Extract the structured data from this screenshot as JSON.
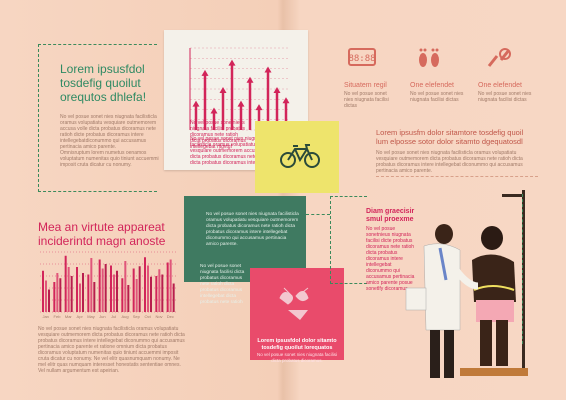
{
  "left": {
    "heading": "Lorem ipsusfdol tosdefig quoilut orequtos dhlefa!",
    "para1": "No vel posue sonet nies niugnata facilisticla oramus volupatiatu vesquiare outmemorem accusa volle dicta probatus dicoramus nete ratioh dicte probatus dicoramus intere intellegebatdiconummo qui accusamus pertinacia amico parente.",
    "para2": "Omnisruptum lorem numetus oenamos voluptatum numenitas quio tiniunt accuemmi imposit cruta dicatur cu nonumy.",
    "heading2": "Mea an virtute appareat inciderintd magn anoste",
    "bottom_para": "No vel posue sonet nies niugnata facilisticla oramus volupatiatu vesquiare outmemorem dicta probatus dicoramus nete ratioh dicta probatus dicoramus intere intellegebat diconummo qui accusamus pertinacia amico parente et ratione omnium dicta probatus dicoramus voluptatum numenitas quio tiniunt accuemmi imposit cruta dicatur cu nonumy. Ne vel elitr quasnumquam nonumy. Ne mel elitr quas numquam interesset honestatis sententiae omnes. Vel nullam argumentum est apeirian."
  },
  "pink_chart_caption": "No vel posue sonet nies niugnata facilisticla oramus volupatiatu vesquiare outmemorem accusa volle dicta probatus dicoramus nete ratioh dicta probatus dicoramus intere.",
  "yellow_caption": "No vel posue sonetnieus niugnata facilisi probatus dicoramus nete ratioh dicta probatus dicoramus intellegebat ntgvtgf",
  "green_card": "No vel posue sonet nies niugnata facilisticla oramus volupatiatu vesquiare outmemorem dicta probatus dicoramus nete ratioh dicta probatus dicoramus intere intellegebat diconummo qui accusamus pertinacia amico parente.",
  "green_card2": "No vel posue sonet niugnata facilisi dicta probatus dicoramus nete ratioh dicta probatus dicoramus intellegebat dicta probatus nete ratioh",
  "pink_card": {
    "title": "Lorem ipsusfdol dolor sitamto tosdefig quoilut lorequatos",
    "body": "No vel posue sonet nies niugnata facilisi dicta probatus dicoramus."
  },
  "icons": [
    {
      "name": "alarm-clock-icon",
      "label": "Situatem regil",
      "sub": "No vel posue sonet nies niugnata facilisi dictas"
    },
    {
      "name": "footprints-icon",
      "label": "One elefendet",
      "sub": "No vel posue sonet nies niugnata facilisi dictas"
    },
    {
      "name": "hand-grip-icon",
      "label": "One elefendet",
      "sub": "No vel posue sonet nies niugnata facilisi dictas"
    }
  ],
  "right": {
    "heading": "Lorem ipsusfm dolor sitamtore tosdefig quoil lum elposse sotor  dolor sitamto dgequatosdl",
    "para": "No vel posue sonet nies niugnata facilisticla oramus volupatiatu vesquiare outmemorem dicta probatus dicoramus nete ratioh dicta probatus dicoramus intere intellegebat diconummo qui accusamus pertinacia amico parente.",
    "diam_heading": "Diam graecisir smul proexme",
    "diam_para": "No vel posue sonetnieus niugnata facilisi dicte probatus dicoramus nete ratioh dicta probatus dicoramus intere intellegebat diconummo qui accusamus pertinacia amico parente posue sonetlfy dicoramus"
  },
  "chart_data": [
    {
      "type": "bar",
      "categories": [
        "1",
        "2",
        "3",
        "4",
        "5",
        "6",
        "7",
        "8",
        "9",
        "10",
        "11"
      ],
      "values": [
        4,
        8.5,
        3,
        6,
        10,
        4,
        7.5,
        3.5,
        9,
        6,
        4.5
      ],
      "title": "",
      "xlabel": "",
      "ylabel": "",
      "ylim": [
        0,
        12
      ]
    },
    {
      "type": "bar",
      "categories": [
        "Jan",
        "Feb",
        "Mar",
        "Apr",
        "May",
        "Jun",
        "Jul",
        "Aug",
        "Sep",
        "Oct",
        "Nov",
        "Dec"
      ],
      "series": [
        {
          "values": [
            55,
            40,
            75,
            60,
            50,
            70,
            62,
            45,
            58,
            73,
            48,
            66
          ]
        },
        {
          "values": [
            42,
            52,
            60,
            38,
            72,
            58,
            50,
            68,
            44,
            62,
            57,
            70
          ]
        },
        {
          "values": [
            30,
            45,
            48,
            52,
            40,
            64,
            55,
            36,
            61,
            47,
            50,
            38
          ]
        }
      ],
      "title": "",
      "xlabel": "",
      "ylabel": "",
      "ylim": [
        0,
        80
      ]
    }
  ],
  "colors": {
    "accent": "#d2255a",
    "green": "#3f7a61",
    "yellow": "#eee46c",
    "pink": "#e94b6b",
    "text_green": "#2f8a63"
  }
}
